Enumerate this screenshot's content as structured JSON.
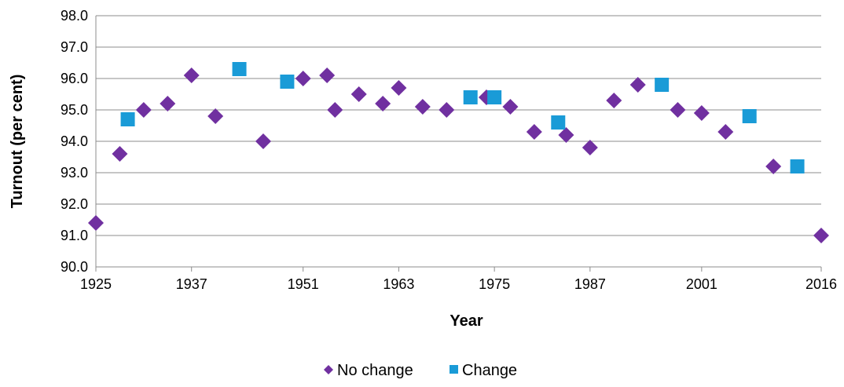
{
  "chart_data": {
    "type": "scatter",
    "title": "",
    "xlabel": "Year",
    "ylabel": "Turnout (per cent)",
    "xlim": [
      1925,
      2016
    ],
    "ylim": [
      90.0,
      98.0
    ],
    "x_ticks": [
      "1925",
      "1937",
      "1951",
      "1963",
      "1975",
      "1987",
      "2001",
      "2016"
    ],
    "y_ticks": [
      "90.0",
      "91.0",
      "92.0",
      "93.0",
      "94.0",
      "95.0",
      "96.0",
      "97.0",
      "98.0"
    ],
    "grid": true,
    "legend_position": "bottom",
    "series": [
      {
        "name": "No change",
        "marker": "diamond",
        "color": "#7030A0",
        "points": [
          {
            "x": 1925,
            "y": 91.4
          },
          {
            "x": 1928,
            "y": 93.6
          },
          {
            "x": 1931,
            "y": 95.0
          },
          {
            "x": 1934,
            "y": 95.2
          },
          {
            "x": 1937,
            "y": 96.1
          },
          {
            "x": 1940,
            "y": 94.8
          },
          {
            "x": 1946,
            "y": 94.0
          },
          {
            "x": 1951,
            "y": 96.0
          },
          {
            "x": 1954,
            "y": 96.1
          },
          {
            "x": 1955,
            "y": 95.0
          },
          {
            "x": 1958,
            "y": 95.5
          },
          {
            "x": 1961,
            "y": 95.2
          },
          {
            "x": 1963,
            "y": 95.7
          },
          {
            "x": 1966,
            "y": 95.1
          },
          {
            "x": 1969,
            "y": 95.0
          },
          {
            "x": 1974,
            "y": 95.4
          },
          {
            "x": 1977,
            "y": 95.1
          },
          {
            "x": 1980,
            "y": 94.3
          },
          {
            "x": 1984,
            "y": 94.2
          },
          {
            "x": 1987,
            "y": 93.8
          },
          {
            "x": 1990,
            "y": 95.3
          },
          {
            "x": 1993,
            "y": 95.8
          },
          {
            "x": 1998,
            "y": 95.0
          },
          {
            "x": 2001,
            "y": 94.9
          },
          {
            "x": 2004,
            "y": 94.3
          },
          {
            "x": 2010,
            "y": 93.2
          },
          {
            "x": 2016,
            "y": 91.0
          }
        ]
      },
      {
        "name": "Change",
        "marker": "square",
        "color": "#1A9BD7",
        "points": [
          {
            "x": 1929,
            "y": 94.7
          },
          {
            "x": 1943,
            "y": 96.3
          },
          {
            "x": 1949,
            "y": 95.9
          },
          {
            "x": 1972,
            "y": 95.4
          },
          {
            "x": 1975,
            "y": 95.4
          },
          {
            "x": 1983,
            "y": 94.6
          },
          {
            "x": 1996,
            "y": 95.8
          },
          {
            "x": 2007,
            "y": 94.8
          },
          {
            "x": 2013,
            "y": 93.2
          }
        ]
      }
    ]
  }
}
